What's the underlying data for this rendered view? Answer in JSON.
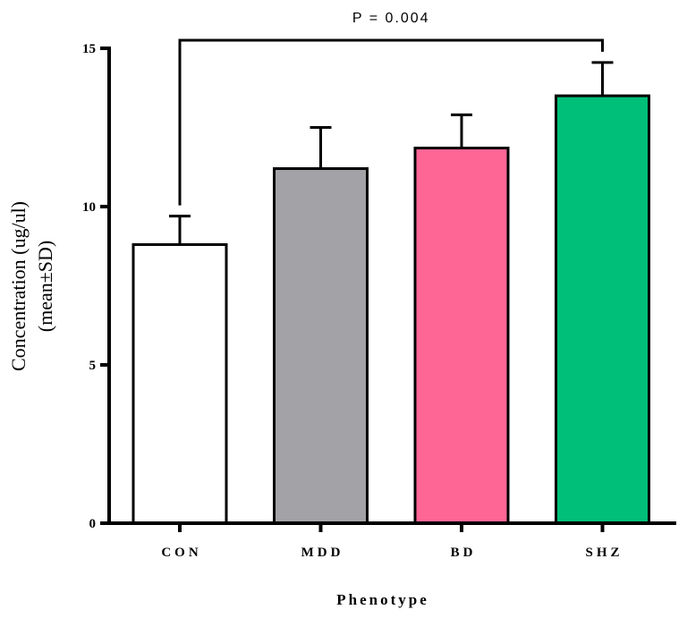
{
  "chart_data": {
    "type": "bar",
    "categories": [
      "CON",
      "MDD",
      "BD",
      "SHZ"
    ],
    "values": [
      8.8,
      11.2,
      11.85,
      13.5
    ],
    "errors": [
      0.9,
      1.3,
      1.05,
      1.05
    ],
    "colors": [
      "#ffffff",
      "#a3a2a7",
      "#fe6696",
      "#00bf78"
    ],
    "xlabel": "Phenotype",
    "ylabel_line1": "Concentration (ug/ul)",
    "ylabel_line2": "(mean±SD)",
    "ylim": [
      0,
      15
    ],
    "yticks": [
      "0",
      "5",
      "10",
      "15"
    ],
    "ytick_values": [
      0,
      5,
      10,
      15
    ],
    "annotation": {
      "text": "P = 0.004",
      "from": "CON",
      "to": "SHZ",
      "bracket_y": 15.3
    }
  }
}
